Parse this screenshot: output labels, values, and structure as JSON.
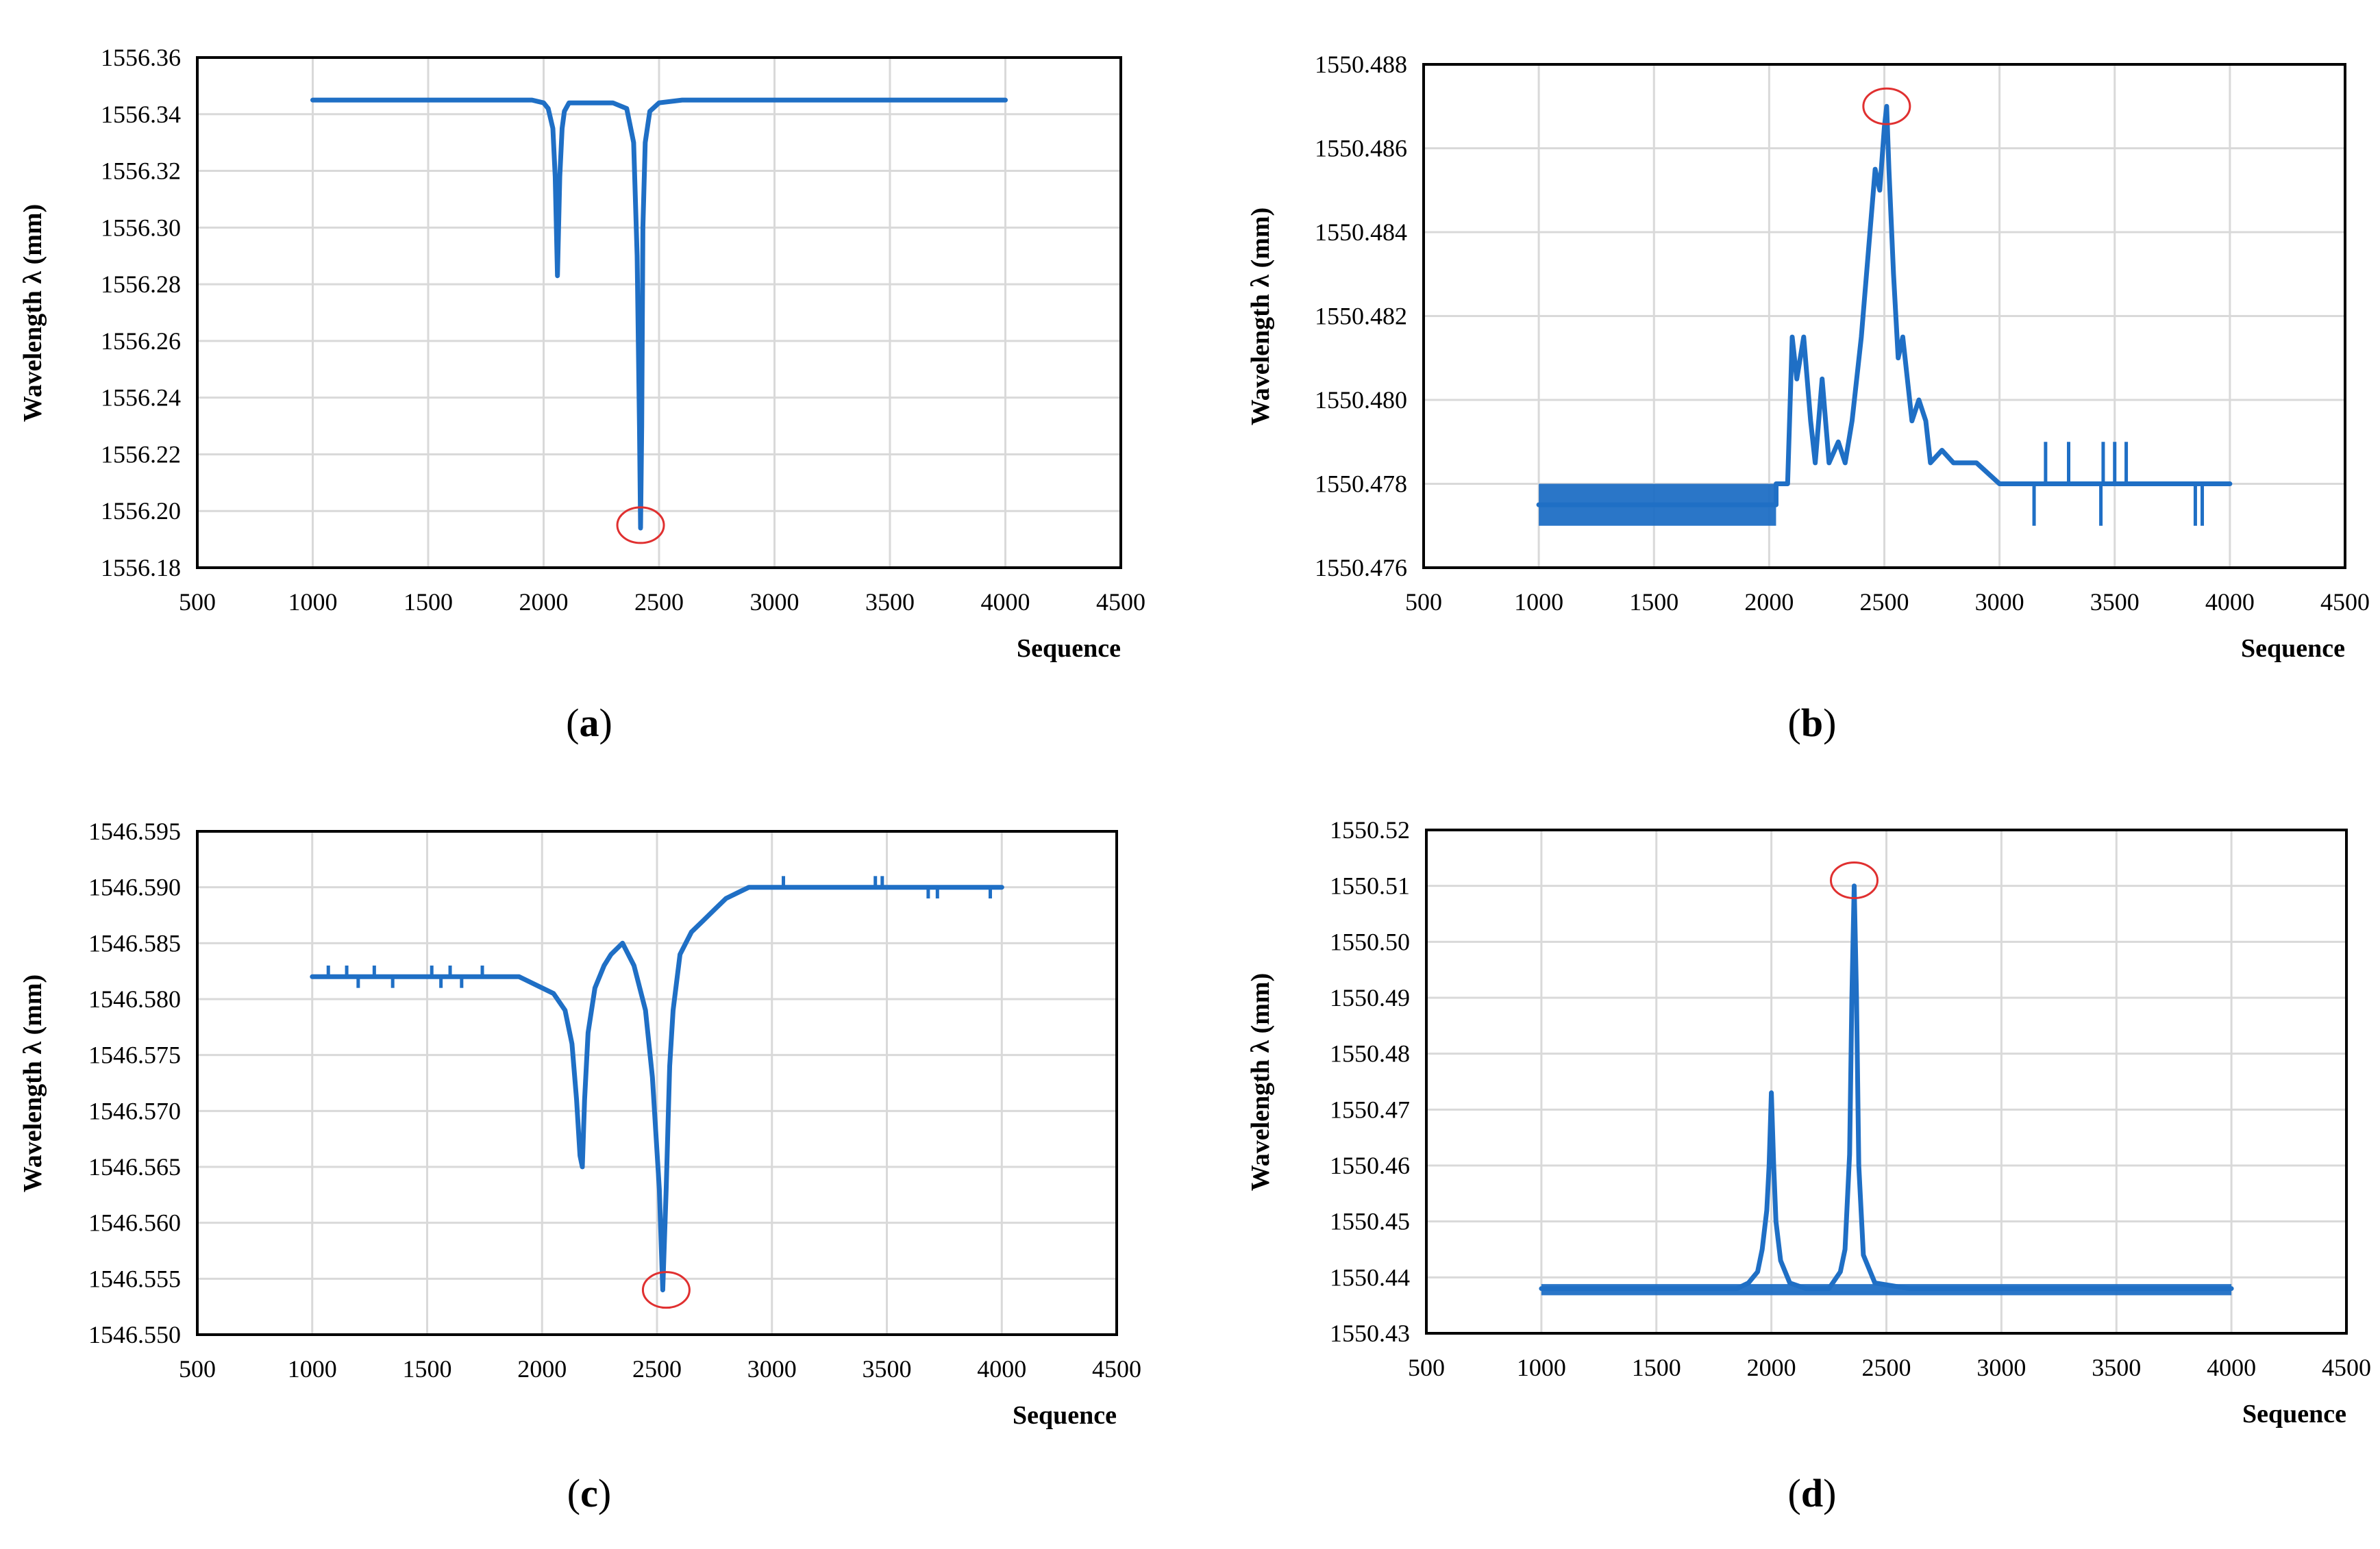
{
  "figure": {
    "colors": {
      "series": "#1f6fc5",
      "grid": "#d9d9d9",
      "marker": "#e03030",
      "axis": "#000000"
    }
  },
  "chart_data": [
    {
      "panel": "a",
      "caption": "(a)",
      "type": "line",
      "title": "",
      "xlabel": "Sequence",
      "ylabel": "Wavelength λ (mm)",
      "xlim": [
        500,
        4500
      ],
      "ylim": [
        1556.18,
        1556.36
      ],
      "xticks": [
        "500",
        "1000",
        "1500",
        "2000",
        "2500",
        "3000",
        "3500",
        "4000",
        "4500"
      ],
      "yticks": [
        "1556.18",
        "1556.20",
        "1556.22",
        "1556.24",
        "1556.26",
        "1556.28",
        "1556.30",
        "1556.32",
        "1556.34",
        "1556.36"
      ],
      "series": [
        {
          "name": "wavelength",
          "x": [
            1000,
            1200,
            1400,
            1600,
            1800,
            1950,
            2000,
            2020,
            2040,
            2050,
            2060,
            2070,
            2080,
            2090,
            2110,
            2140,
            2200,
            2300,
            2360,
            2390,
            2405,
            2415,
            2420,
            2425,
            2430,
            2440,
            2460,
            2500,
            2600,
            2800,
            3000,
            3200,
            3400,
            3600,
            3800,
            4000
          ],
          "y": [
            1556.345,
            1556.345,
            1556.345,
            1556.345,
            1556.345,
            1556.345,
            1556.344,
            1556.342,
            1556.335,
            1556.318,
            1556.283,
            1556.318,
            1556.335,
            1556.341,
            1556.344,
            1556.344,
            1556.344,
            1556.344,
            1556.342,
            1556.33,
            1556.29,
            1556.23,
            1556.194,
            1556.23,
            1556.3,
            1556.33,
            1556.341,
            1556.344,
            1556.345,
            1556.345,
            1556.345,
            1556.345,
            1556.345,
            1556.345,
            1556.345,
            1556.345
          ]
        }
      ],
      "annotations": [
        {
          "type": "circle",
          "x": 2420,
          "y": 1556.195
        }
      ]
    },
    {
      "panel": "b",
      "caption": "(b)",
      "type": "line",
      "title": "",
      "xlabel": "Sequence",
      "ylabel": "Wavelength λ (mm)",
      "xlim": [
        500,
        4500
      ],
      "ylim": [
        1550.476,
        1550.488
      ],
      "xticks": [
        "500",
        "1000",
        "1500",
        "2000",
        "2500",
        "3000",
        "3500",
        "4000",
        "4500"
      ],
      "yticks": [
        "1550.476",
        "1550.478",
        "1550.480",
        "1550.482",
        "1550.484",
        "1550.486",
        "1550.488"
      ],
      "series": [
        {
          "name": "wavelength",
          "x": [
            1000,
            2030,
            2030,
            2080,
            2100,
            2120,
            2150,
            2180,
            2200,
            2230,
            2260,
            2300,
            2330,
            2360,
            2400,
            2430,
            2460,
            2480,
            2500,
            2510,
            2520,
            2540,
            2560,
            2580,
            2600,
            2620,
            2650,
            2680,
            2700,
            2750,
            2800,
            2850,
            2900,
            3000,
            3200,
            3400,
            3600,
            3800,
            4000
          ],
          "y": [
            1550.4775,
            1550.4775,
            1550.478,
            1550.478,
            1550.4815,
            1550.4805,
            1550.4815,
            1550.4795,
            1550.4785,
            1550.4805,
            1550.4785,
            1550.479,
            1550.4785,
            1550.4795,
            1550.4815,
            1550.4835,
            1550.4855,
            1550.485,
            1550.4865,
            1550.487,
            1550.4855,
            1550.483,
            1550.481,
            1550.4815,
            1550.4805,
            1550.4795,
            1550.48,
            1550.4795,
            1550.4785,
            1550.4788,
            1550.4785,
            1550.4785,
            1550.4785,
            1550.478,
            1550.478,
            1550.478,
            1550.478,
            1550.478,
            1550.478
          ]
        }
      ],
      "spikes": [
        {
          "x": 3150,
          "y1": 1550.478,
          "y2": 1550.477
        },
        {
          "x": 3200,
          "y1": 1550.478,
          "y2": 1550.479
        },
        {
          "x": 3300,
          "y1": 1550.478,
          "y2": 1550.479
        },
        {
          "x": 3440,
          "y1": 1550.478,
          "y2": 1550.477
        },
        {
          "x": 3450,
          "y1": 1550.478,
          "y2": 1550.479
        },
        {
          "x": 3500,
          "y1": 1550.478,
          "y2": 1550.479
        },
        {
          "x": 3550,
          "y1": 1550.478,
          "y2": 1550.479
        },
        {
          "x": 3850,
          "y1": 1550.478,
          "y2": 1550.477
        },
        {
          "x": 3880,
          "y1": 1550.478,
          "y2": 1550.477
        }
      ],
      "bands": [
        {
          "x1": 1000,
          "x2": 2030,
          "y1": 1550.477,
          "y2": 1550.478
        }
      ],
      "annotations": [
        {
          "type": "circle",
          "x": 2510,
          "y": 1550.487
        }
      ]
    },
    {
      "panel": "c",
      "caption": "(c)",
      "type": "line",
      "title": "",
      "xlabel": "Sequence",
      "ylabel": "Wavelength λ (mm)",
      "xlim": [
        500,
        4500
      ],
      "ylim": [
        1546.55,
        1546.595
      ],
      "xticks": [
        "500",
        "1000",
        "1500",
        "2000",
        "2500",
        "3000",
        "3500",
        "4000",
        "4500"
      ],
      "yticks": [
        "1546.550",
        "1546.555",
        "1546.560",
        "1546.565",
        "1546.570",
        "1546.575",
        "1546.580",
        "1546.585",
        "1546.590",
        "1546.595"
      ],
      "series": [
        {
          "name": "wavelength",
          "x": [
            1000,
            1500,
            1900,
            2000,
            2050,
            2100,
            2130,
            2150,
            2165,
            2175,
            2185,
            2200,
            2230,
            2270,
            2300,
            2350,
            2400,
            2450,
            2480,
            2510,
            2525,
            2540,
            2555,
            2570,
            2600,
            2650,
            2700,
            2750,
            2800,
            2850,
            2900,
            3000,
            3500,
            4000
          ],
          "y": [
            1546.582,
            1546.582,
            1546.582,
            1546.581,
            1546.5805,
            1546.579,
            1546.576,
            1546.571,
            1546.566,
            1546.565,
            1546.571,
            1546.577,
            1546.581,
            1546.583,
            1546.584,
            1546.585,
            1546.583,
            1546.579,
            1546.573,
            1546.563,
            1546.554,
            1546.563,
            1546.574,
            1546.579,
            1546.584,
            1546.586,
            1546.587,
            1546.588,
            1546.589,
            1546.5895,
            1546.59,
            1546.59,
            1546.59,
            1546.59
          ]
        }
      ],
      "spikes": [
        {
          "x": 1070,
          "y1": 1546.582,
          "y2": 1546.583
        },
        {
          "x": 1150,
          "y1": 1546.582,
          "y2": 1546.583
        },
        {
          "x": 1200,
          "y1": 1546.582,
          "y2": 1546.581
        },
        {
          "x": 1270,
          "y1": 1546.582,
          "y2": 1546.583
        },
        {
          "x": 1350,
          "y1": 1546.582,
          "y2": 1546.581
        },
        {
          "x": 1520,
          "y1": 1546.582,
          "y2": 1546.583
        },
        {
          "x": 1560,
          "y1": 1546.582,
          "y2": 1546.581
        },
        {
          "x": 1600,
          "y1": 1546.582,
          "y2": 1546.583
        },
        {
          "x": 1650,
          "y1": 1546.582,
          "y2": 1546.581
        },
        {
          "x": 1740,
          "y1": 1546.582,
          "y2": 1546.583
        },
        {
          "x": 3050,
          "y1": 1546.59,
          "y2": 1546.591
        },
        {
          "x": 3450,
          "y1": 1546.59,
          "y2": 1546.591
        },
        {
          "x": 3480,
          "y1": 1546.59,
          "y2": 1546.591
        },
        {
          "x": 3680,
          "y1": 1546.59,
          "y2": 1546.589
        },
        {
          "x": 3720,
          "y1": 1546.59,
          "y2": 1546.589
        },
        {
          "x": 3950,
          "y1": 1546.59,
          "y2": 1546.589
        }
      ],
      "annotations": [
        {
          "type": "circle",
          "x": 2540,
          "y": 1546.554
        }
      ]
    },
    {
      "panel": "d",
      "caption": "(d)",
      "type": "line",
      "title": "",
      "xlabel": "Sequence",
      "ylabel": "Wavelength λ (mm)",
      "xlim": [
        500,
        4500
      ],
      "ylim": [
        1550.43,
        1550.52
      ],
      "xticks": [
        "500",
        "1000",
        "1500",
        "2000",
        "2500",
        "3000",
        "3500",
        "4000",
        "4500"
      ],
      "yticks": [
        "1550.43",
        "1550.44",
        "1550.45",
        "1550.46",
        "1550.47",
        "1550.48",
        "1550.49",
        "1550.50",
        "1550.51",
        "1550.52"
      ],
      "series": [
        {
          "name": "wavelength",
          "x": [
            1000,
            1500,
            1850,
            1900,
            1940,
            1960,
            1980,
            1990,
            2000,
            2010,
            2020,
            2040,
            2080,
            2150,
            2250,
            2300,
            2320,
            2340,
            2350,
            2360,
            2370,
            2380,
            2400,
            2450,
            2600,
            3000,
            3500,
            4000
          ],
          "y": [
            1550.438,
            1550.438,
            1550.438,
            1550.439,
            1550.441,
            1550.445,
            1550.452,
            1550.46,
            1550.473,
            1550.46,
            1550.45,
            1550.443,
            1550.439,
            1550.438,
            1550.438,
            1550.441,
            1550.445,
            1550.462,
            1550.49,
            1550.51,
            1550.49,
            1550.46,
            1550.444,
            1550.439,
            1550.438,
            1550.438,
            1550.438,
            1550.438
          ]
        }
      ],
      "bands": [
        {
          "x1": 1000,
          "x2": 4000,
          "y1": 1550.4368,
          "y2": 1550.4388
        }
      ],
      "annotations": [
        {
          "type": "circle",
          "x": 2360,
          "y": 1550.511
        }
      ]
    }
  ]
}
